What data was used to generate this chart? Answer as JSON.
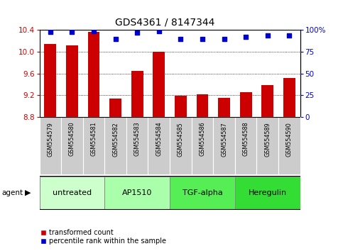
{
  "title": "GDS4361 / 8147344",
  "samples": [
    "GSM554579",
    "GSM554580",
    "GSM554581",
    "GSM554582",
    "GSM554583",
    "GSM554584",
    "GSM554585",
    "GSM554586",
    "GSM554587",
    "GSM554588",
    "GSM554589",
    "GSM554590"
  ],
  "bar_values": [
    10.15,
    10.12,
    10.37,
    9.14,
    9.65,
    10.0,
    9.19,
    9.21,
    9.15,
    9.25,
    9.38,
    9.52
  ],
  "percentile_values": [
    98,
    98,
    99,
    90,
    97,
    99,
    90,
    90,
    90,
    92,
    94,
    94
  ],
  "bar_color": "#cc0000",
  "dot_color": "#0000cc",
  "ylim_left": [
    8.8,
    10.4
  ],
  "yticks_left": [
    8.8,
    9.2,
    9.6,
    10.0,
    10.4
  ],
  "ylim_right": [
    0,
    100
  ],
  "yticks_right": [
    0,
    25,
    50,
    75,
    100
  ],
  "ylabel_right_labels": [
    "0",
    "25",
    "50",
    "75",
    "100%"
  ],
  "groups": [
    {
      "label": "untreated",
      "start": 0,
      "end": 3,
      "color": "#ccffcc"
    },
    {
      "label": "AP1510",
      "start": 3,
      "end": 6,
      "color": "#aaffaa"
    },
    {
      "label": "TGF-alpha",
      "start": 6,
      "end": 9,
      "color": "#55ee55"
    },
    {
      "label": "Heregulin",
      "start": 9,
      "end": 12,
      "color": "#33dd33"
    }
  ],
  "agent_label": "agent",
  "legend_bar_label": "transformed count",
  "legend_dot_label": "percentile rank within the sample",
  "grid_color": "#000000",
  "background_color": "#ffffff",
  "plot_bg_color": "#ffffff",
  "bar_bottom": 8.8,
  "bar_width": 0.55
}
